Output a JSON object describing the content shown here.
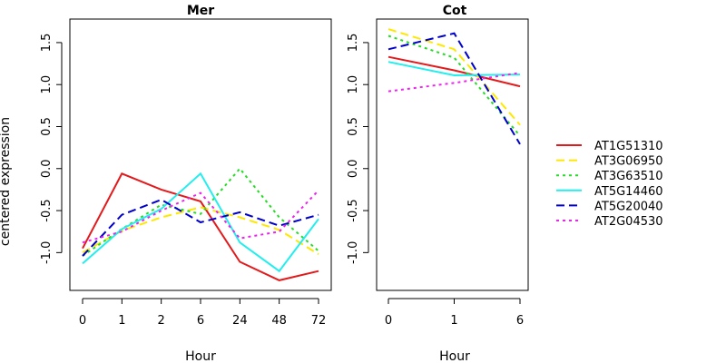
{
  "chart_data": {
    "type": "line",
    "ylabel": "centered expression",
    "ylim": [
      -1.45,
      1.78
    ],
    "yticks": [
      "-1.0",
      "-0.5",
      "0.0",
      "0.5",
      "1.0",
      "1.5"
    ],
    "grid": false,
    "legend_position": "right",
    "series": [
      {
        "name": "AT1G51310",
        "color": "#e31a1c",
        "dash": "solid"
      },
      {
        "name": "AT3G06950",
        "color": "#ffe800",
        "dash": "long-dash"
      },
      {
        "name": "AT3G63510",
        "color": "#22dd22",
        "dash": "dotted"
      },
      {
        "name": "AT5G14460",
        "color": "#22eeee",
        "dash": "solid"
      },
      {
        "name": "AT5G20040",
        "color": "#0000cc",
        "dash": "long-dash"
      },
      {
        "name": "AT2G04530",
        "color": "#ee22ee",
        "dash": "dotted"
      }
    ],
    "panels": [
      {
        "title": "Mer",
        "xlabel": "Hour",
        "categories": [
          "0",
          "1",
          "2",
          "6",
          "24",
          "48",
          "72"
        ],
        "values": [
          [
            -0.95,
            -0.06,
            -0.25,
            -0.39,
            -1.11,
            -1.33,
            -1.22
          ],
          [
            -1.0,
            -0.74,
            -0.58,
            -0.46,
            -0.58,
            -0.73,
            -1.02
          ],
          [
            -1.04,
            -0.72,
            -0.43,
            -0.54,
            0.0,
            -0.58,
            -0.98
          ],
          [
            -1.13,
            -0.72,
            -0.48,
            -0.06,
            -0.88,
            -1.22,
            -0.6
          ],
          [
            -1.04,
            -0.55,
            -0.37,
            -0.64,
            -0.52,
            -0.68,
            -0.55
          ],
          [
            -0.88,
            -0.75,
            -0.5,
            -0.29,
            -0.83,
            -0.75,
            -0.26
          ]
        ]
      },
      {
        "title": "Cot",
        "xlabel": "Hour",
        "categories": [
          "0",
          "1",
          "6"
        ],
        "values": [
          [
            1.33,
            1.17,
            0.98
          ],
          [
            1.66,
            1.42,
            0.52
          ],
          [
            1.58,
            1.32,
            0.39
          ],
          [
            1.27,
            1.11,
            1.12
          ],
          [
            1.42,
            1.61,
            0.29
          ],
          [
            0.92,
            1.02,
            1.14
          ]
        ]
      }
    ]
  }
}
